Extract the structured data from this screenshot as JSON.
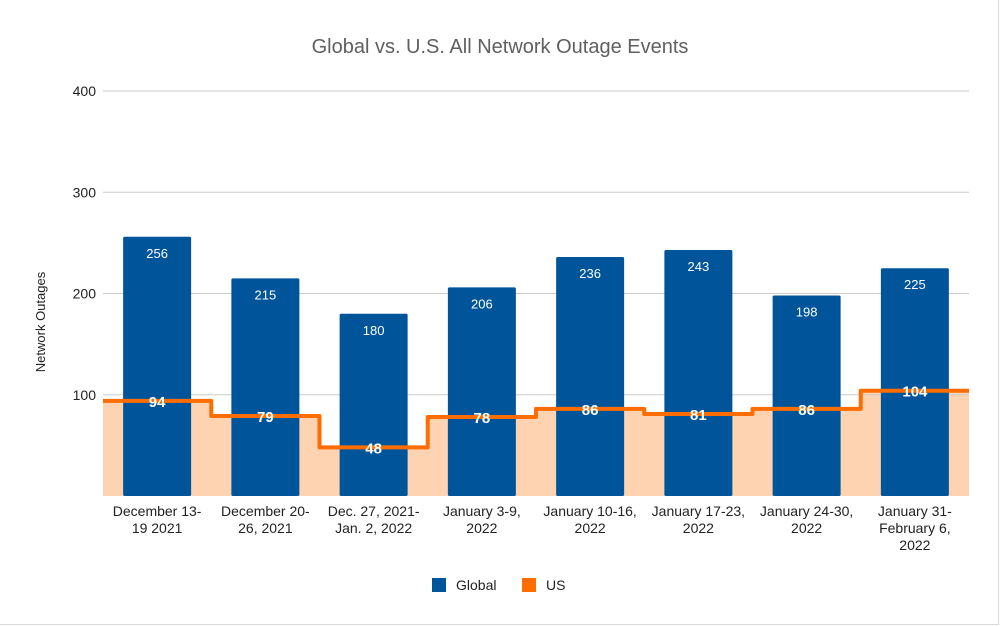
{
  "chart_data": {
    "type": "bar",
    "title": "Global vs. U.S. All Network Outage Events",
    "xlabel": "",
    "ylabel": "Network Outages",
    "ylim": [
      0,
      400
    ],
    "yticks": [
      "100",
      "200",
      "300",
      "400"
    ],
    "grid": true,
    "legend_position": "bottom",
    "categories": [
      [
        "December 13-",
        "19 2021"
      ],
      [
        "December 20-",
        "26, 2021"
      ],
      [
        "Dec. 27, 2021-",
        "Jan. 2, 2022"
      ],
      [
        "January 3-9,",
        "2022"
      ],
      [
        "January 10-16,",
        "2022"
      ],
      [
        "January 17-23,",
        "2022"
      ],
      [
        "January 24-30,",
        "2022"
      ],
      [
        "January 31-",
        "February 6,",
        "2022"
      ]
    ],
    "series": [
      {
        "name": "Global",
        "type": "bar",
        "color": "#00559a",
        "values": [
          256,
          215,
          180,
          206,
          236,
          243,
          198,
          225
        ]
      },
      {
        "name": "US",
        "type": "stepped-area",
        "color": "#ff6d01",
        "fill": "#fdd3b1",
        "values": [
          94,
          79,
          48,
          78,
          86,
          81,
          86,
          104
        ]
      }
    ]
  }
}
